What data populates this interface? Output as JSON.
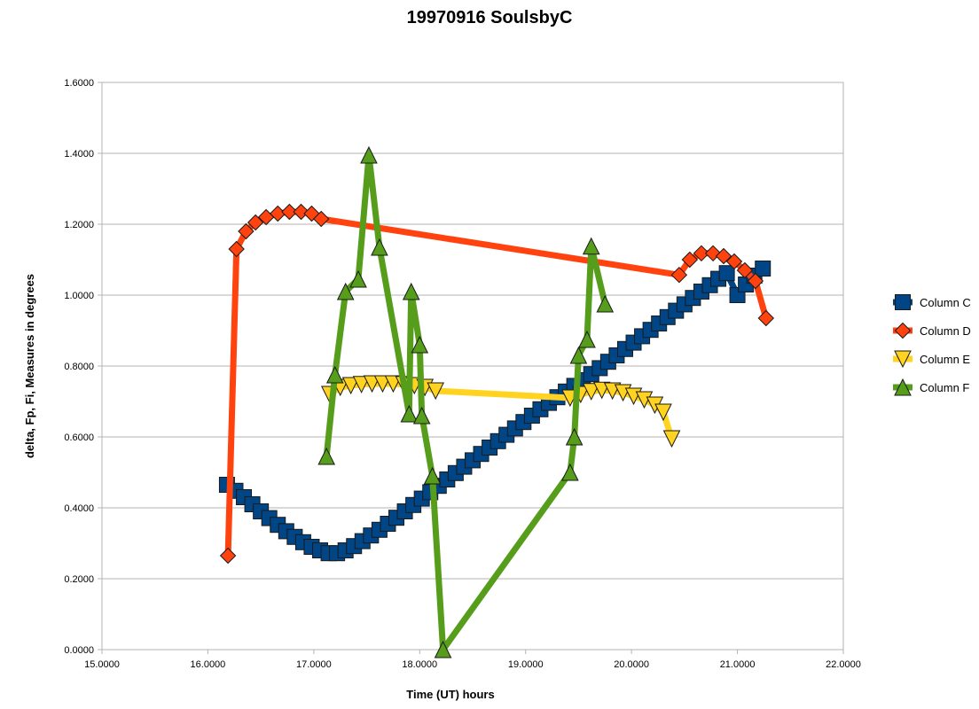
{
  "chart_data": {
    "type": "line",
    "title": "19970916 SoulsbyC",
    "xlabel": "Time (UT) hours",
    "ylabel": "delta, Fp, Fi, Measures in degrees",
    "xlim": [
      15,
      22
    ],
    "ylim": [
      0,
      1.6
    ],
    "x_ticks": [
      15,
      16,
      17,
      18,
      19,
      20,
      21,
      22
    ],
    "y_ticks": [
      0,
      0.2,
      0.4,
      0.6,
      0.8,
      1.0,
      1.2,
      1.4,
      1.6
    ],
    "x_tick_labels": [
      "15.0000",
      "16.0000",
      "17.0000",
      "18.0000",
      "19.0000",
      "20.0000",
      "21.0000",
      "22.0000"
    ],
    "y_tick_labels": [
      "0.0000",
      "0.2000",
      "0.4000",
      "0.6000",
      "0.8000",
      "1.0000",
      "1.2000",
      "1.4000",
      "1.6000"
    ],
    "grid": "horizontal",
    "legend_position": "right",
    "series": [
      {
        "name": "Column C",
        "color": "#004586",
        "marker": "square",
        "points": [
          [
            16.18,
            0.465
          ],
          [
            16.26,
            0.448
          ],
          [
            16.34,
            0.43
          ],
          [
            16.42,
            0.41
          ],
          [
            16.5,
            0.39
          ],
          [
            16.58,
            0.371
          ],
          [
            16.66,
            0.352
          ],
          [
            16.74,
            0.334
          ],
          [
            16.82,
            0.318
          ],
          [
            16.9,
            0.303
          ],
          [
            16.98,
            0.29
          ],
          [
            17.06,
            0.28
          ],
          [
            17.14,
            0.272
          ],
          [
            17.22,
            0.272
          ],
          [
            17.3,
            0.28
          ],
          [
            17.38,
            0.292
          ],
          [
            17.46,
            0.306
          ],
          [
            17.54,
            0.322
          ],
          [
            17.62,
            0.338
          ],
          [
            17.7,
            0.355
          ],
          [
            17.78,
            0.372
          ],
          [
            17.86,
            0.39
          ],
          [
            17.94,
            0.408
          ],
          [
            18.02,
            0.426
          ],
          [
            18.1,
            0.444
          ],
          [
            18.18,
            0.462
          ],
          [
            18.26,
            0.48
          ],
          [
            18.34,
            0.498
          ],
          [
            18.42,
            0.516
          ],
          [
            18.5,
            0.534
          ],
          [
            18.58,
            0.552
          ],
          [
            18.66,
            0.57
          ],
          [
            18.74,
            0.588
          ],
          [
            18.82,
            0.606
          ],
          [
            18.9,
            0.624
          ],
          [
            18.98,
            0.642
          ],
          [
            19.06,
            0.66
          ],
          [
            19.14,
            0.678
          ],
          [
            19.22,
            0.696
          ],
          [
            19.3,
            0.712
          ],
          [
            19.38,
            0.728
          ],
          [
            19.46,
            0.744
          ],
          [
            19.54,
            0.76
          ],
          [
            19.62,
            0.777
          ],
          [
            19.7,
            0.794
          ],
          [
            19.78,
            0.812
          ],
          [
            19.86,
            0.83
          ],
          [
            19.94,
            0.848
          ],
          [
            20.02,
            0.866
          ],
          [
            20.1,
            0.884
          ],
          [
            20.18,
            0.902
          ],
          [
            20.26,
            0.92
          ],
          [
            20.34,
            0.938
          ],
          [
            20.42,
            0.956
          ],
          [
            20.5,
            0.974
          ],
          [
            20.58,
            0.992
          ],
          [
            20.66,
            1.01
          ],
          [
            20.74,
            1.028
          ],
          [
            20.82,
            1.046
          ],
          [
            20.9,
            1.062
          ],
          [
            21.0,
            1.0
          ],
          [
            21.08,
            1.03
          ],
          [
            21.16,
            1.055
          ],
          [
            21.24,
            1.075
          ]
        ]
      },
      {
        "name": "Column D",
        "color": "#ff420e",
        "marker": "diamond",
        "points": [
          [
            16.19,
            0.265
          ],
          [
            16.27,
            1.13
          ],
          [
            16.36,
            1.18
          ],
          [
            16.45,
            1.205
          ],
          [
            16.55,
            1.22
          ],
          [
            16.66,
            1.23
          ],
          [
            16.77,
            1.235
          ],
          [
            16.88,
            1.235
          ],
          [
            16.98,
            1.23
          ],
          [
            17.07,
            1.215
          ],
          [
            20.45,
            1.057
          ],
          [
            20.55,
            1.1
          ],
          [
            20.66,
            1.118
          ],
          [
            20.77,
            1.118
          ],
          [
            20.87,
            1.11
          ],
          [
            20.97,
            1.095
          ],
          [
            21.07,
            1.07
          ],
          [
            21.17,
            1.04
          ],
          [
            21.27,
            0.935
          ]
        ]
      },
      {
        "name": "Column E",
        "color": "#ffd320",
        "marker": "triangle-down",
        "points": [
          [
            17.15,
            0.72
          ],
          [
            17.25,
            0.74
          ],
          [
            17.35,
            0.745
          ],
          [
            17.45,
            0.748
          ],
          [
            17.55,
            0.75
          ],
          [
            17.65,
            0.75
          ],
          [
            17.75,
            0.75
          ],
          [
            17.85,
            0.748
          ],
          [
            17.95,
            0.745
          ],
          [
            18.05,
            0.74
          ],
          [
            18.15,
            0.73
          ],
          [
            19.42,
            0.71
          ],
          [
            19.52,
            0.72
          ],
          [
            19.62,
            0.728
          ],
          [
            19.72,
            0.732
          ],
          [
            19.82,
            0.73
          ],
          [
            19.92,
            0.725
          ],
          [
            20.02,
            0.715
          ],
          [
            20.12,
            0.705
          ],
          [
            20.22,
            0.69
          ],
          [
            20.3,
            0.67
          ],
          [
            20.38,
            0.595
          ]
        ]
      },
      {
        "name": "Column F",
        "color": "#579d1c",
        "marker": "triangle-up",
        "points": [
          [
            17.12,
            0.545
          ],
          [
            17.2,
            0.775
          ],
          [
            17.3,
            1.01
          ],
          [
            17.42,
            1.045
          ],
          [
            17.52,
            1.395
          ],
          [
            17.62,
            1.135
          ],
          [
            17.9,
            0.665
          ],
          [
            17.92,
            1.01
          ],
          [
            18.0,
            0.86
          ],
          [
            18.02,
            0.66
          ],
          [
            18.12,
            0.49
          ],
          [
            18.22,
            0.0
          ],
          [
            19.42,
            0.5
          ],
          [
            19.46,
            0.6
          ],
          [
            19.5,
            0.83
          ],
          [
            19.58,
            0.875
          ],
          [
            19.62,
            1.138
          ],
          [
            19.75,
            0.975
          ]
        ]
      }
    ]
  }
}
